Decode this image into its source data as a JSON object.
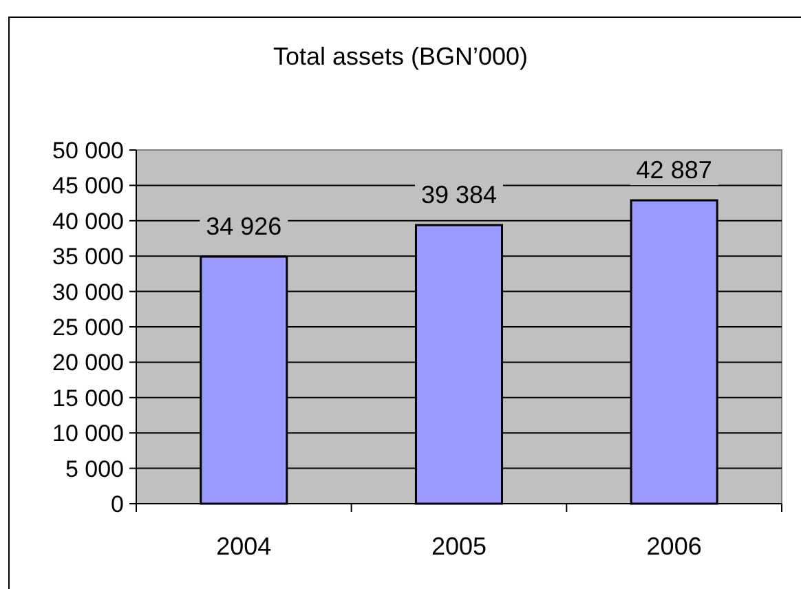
{
  "chart_data": {
    "type": "bar",
    "title": "Total assets (BGN’000)",
    "categories": [
      "2004",
      "2005",
      "2006"
    ],
    "values": [
      34926,
      39384,
      42887
    ],
    "color": "#9999ff",
    "value_labels": [
      "34 926",
      "39 384",
      "42 887"
    ],
    "ylim": [
      0,
      50000
    ],
    "yticks": [
      {
        "value": 0,
        "label": "0"
      },
      {
        "value": 5000,
        "label": "5 000"
      },
      {
        "value": 10000,
        "label": "10 000"
      },
      {
        "value": 15000,
        "label": "15 000"
      },
      {
        "value": 20000,
        "label": "20 000"
      },
      {
        "value": 25000,
        "label": "25 000"
      },
      {
        "value": 30000,
        "label": "30 000"
      },
      {
        "value": 35000,
        "label": "35 000"
      },
      {
        "value": 40000,
        "label": "40 000"
      },
      {
        "value": 45000,
        "label": "45 000"
      },
      {
        "value": 50000,
        "label": "50 000"
      }
    ],
    "grid": "y"
  }
}
